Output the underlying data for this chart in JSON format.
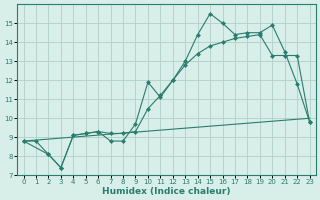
{
  "line1_x": [
    0,
    1,
    2,
    3,
    4,
    5,
    6,
    7,
    8,
    9,
    10,
    11,
    12,
    13,
    14,
    15,
    16,
    17,
    18,
    19,
    20,
    21,
    22,
    23
  ],
  "line1_y": [
    8.8,
    8.8,
    8.1,
    7.4,
    9.1,
    9.2,
    9.3,
    8.8,
    8.8,
    9.7,
    11.9,
    11.1,
    12.0,
    13.0,
    14.4,
    15.5,
    15.0,
    14.4,
    14.5,
    14.5,
    14.9,
    13.5,
    11.8,
    9.8
  ],
  "line2_x": [
    0,
    23
  ],
  "line2_y": [
    8.8,
    10.0
  ],
  "line3_x": [
    0,
    2,
    3,
    4,
    5,
    6,
    7,
    8,
    9,
    10,
    11,
    12,
    13,
    14,
    15,
    16,
    17,
    18,
    19,
    20,
    21,
    22,
    23
  ],
  "line3_y": [
    8.8,
    8.1,
    7.4,
    9.1,
    9.2,
    9.3,
    9.2,
    9.2,
    9.3,
    10.5,
    11.2,
    12.0,
    12.8,
    13.4,
    13.8,
    14.0,
    14.2,
    14.3,
    14.4,
    13.3,
    13.3,
    13.3,
    9.8
  ],
  "line_color": "#2a7d6e",
  "bg_color": "#d8eee8",
  "grid_color": "#b0d0c8",
  "xlabel": "Humidex (Indice chaleur)",
  "ylim": [
    7,
    16
  ],
  "xlim": [
    -0.5,
    23.5
  ],
  "yticks": [
    7,
    8,
    9,
    10,
    11,
    12,
    13,
    14,
    15
  ],
  "xticks": [
    0,
    1,
    2,
    3,
    4,
    5,
    6,
    7,
    8,
    9,
    10,
    11,
    12,
    13,
    14,
    15,
    16,
    17,
    18,
    19,
    20,
    21,
    22,
    23
  ]
}
